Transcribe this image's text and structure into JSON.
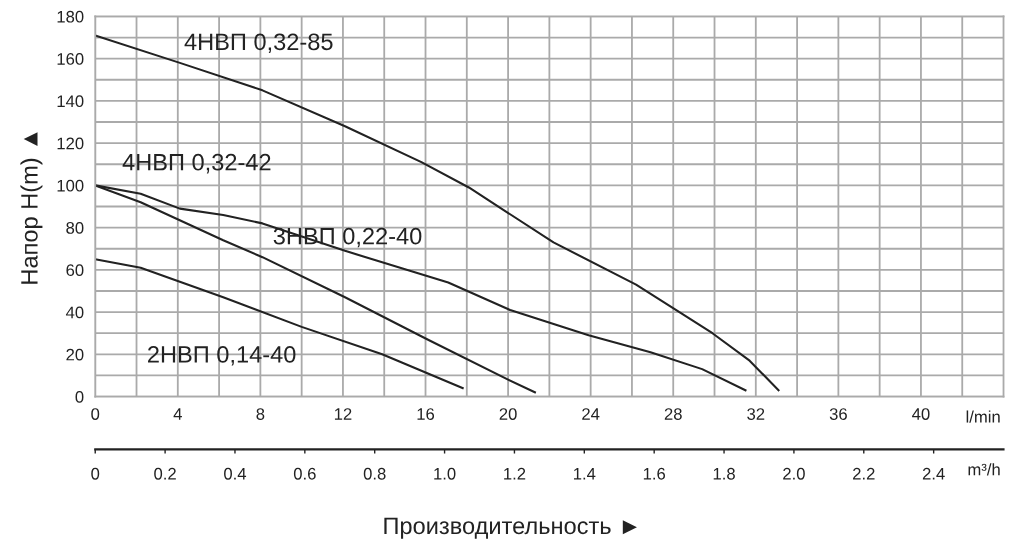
{
  "chart_data": {
    "type": "line",
    "xlabel": "Производительность ►",
    "ylabel": "Напор H(m) ▲",
    "x2label": "m³/h",
    "annotations": [
      "l/min"
    ],
    "series": [
      {
        "name": "4НВП 0,32-85",
        "color": "#222222",
        "x": [
          0,
          4.1,
          8.1,
          12.1,
          15.8,
          18.1,
          22.2,
          26.2,
          28.3,
          29.9,
          31.7,
          33.1
        ],
        "values": [
          171,
          158,
          145,
          128,
          111,
          99,
          73,
          53,
          40,
          30,
          17,
          3
        ]
      },
      {
        "name": "4НВП 0,32-42",
        "color": "#222222",
        "x": [
          0,
          2.2,
          6.2,
          8.1,
          12.1,
          16.1,
          20,
          21.3
        ],
        "values": [
          100,
          92,
          74,
          66,
          47,
          27,
          8,
          2
        ]
      },
      {
        "name": "3НВП 0,22-40",
        "color": "#222222",
        "x": [
          0,
          2.2,
          4.1,
          6.2,
          8.1,
          12.1,
          17.1,
          20.1,
          23.9,
          26.9,
          29.4,
          31.5
        ],
        "values": [
          100,
          96,
          89,
          86,
          82,
          69,
          54,
          41,
          29,
          21,
          13,
          3
        ]
      },
      {
        "name": "2НВП 0,14-40",
        "color": "#222222",
        "x": [
          0,
          2.2,
          6.2,
          10,
          13.9,
          17.8
        ],
        "values": [
          65,
          61,
          47,
          33,
          20,
          4
        ]
      }
    ],
    "xlim": [
      0,
      44
    ],
    "xticks": [
      0,
      {
        "value": 2,
        "label": null
      },
      4,
      {
        "value": 6,
        "label": null
      },
      8,
      {
        "value": 10,
        "label": null
      },
      12,
      {
        "value": 14,
        "label": null
      },
      16,
      {
        "value": 18,
        "label": null
      },
      20,
      {
        "value": 22,
        "label": null
      },
      24,
      {
        "value": 26,
        "label": null
      },
      28,
      {
        "value": 30,
        "label": null
      },
      32,
      {
        "value": 34,
        "label": null
      },
      36,
      {
        "value": 38,
        "label": null
      },
      40,
      {
        "value": 42,
        "label": null
      }
    ],
    "ylim": [
      0,
      180
    ],
    "yticks": [
      0,
      {
        "value": 10,
        "label": null
      },
      20,
      {
        "value": 30,
        "label": null
      },
      40,
      {
        "value": 50,
        "label": null
      },
      60,
      {
        "value": 70,
        "label": null
      },
      80,
      {
        "value": 90,
        "label": null
      },
      100,
      {
        "value": 110,
        "label": null
      },
      120,
      {
        "value": 130,
        "label": null
      },
      140,
      {
        "value": 150,
        "label": null
      },
      160,
      {
        "value": 170,
        "label": null
      },
      180
    ],
    "x2lim": [
      0,
      2.6
    ],
    "x2ticks": [
      0,
      0.2,
      0.4,
      0.6,
      0.8,
      {
        "value": 1,
        "label": "1.0"
      },
      1.2,
      1.4,
      1.6,
      1.8,
      {
        "value": 2,
        "label": "2.0"
      },
      2.2,
      2.4
    ],
    "grid": true,
    "legend": false,
    "marker": "none",
    "line_style": "solid"
  }
}
